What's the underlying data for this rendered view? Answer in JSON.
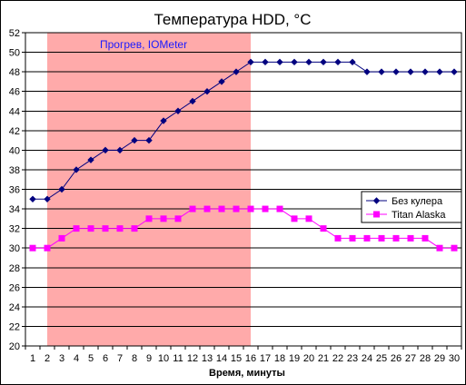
{
  "chart_data": {
    "type": "line",
    "title": "Температура HDD, °C",
    "xlabel": "Время, минуты",
    "ylabel": "",
    "x": [
      1,
      2,
      3,
      4,
      5,
      6,
      7,
      8,
      9,
      10,
      11,
      12,
      13,
      14,
      15,
      16,
      17,
      18,
      19,
      20,
      21,
      22,
      23,
      24,
      25,
      26,
      27,
      28,
      29,
      30
    ],
    "ylim": [
      20,
      52
    ],
    "yticks": [
      20,
      22,
      24,
      26,
      28,
      30,
      32,
      34,
      36,
      38,
      40,
      42,
      44,
      46,
      48,
      50,
      52
    ],
    "grid": "horizontal",
    "legend_position": "right",
    "series": [
      {
        "name": "Без кулера",
        "color": "#00007f",
        "marker": "diamond",
        "values": [
          35,
          35,
          36,
          38,
          39,
          40,
          40,
          41,
          41,
          43,
          44,
          45,
          46,
          47,
          48,
          49,
          49,
          49,
          49,
          49,
          49,
          49,
          49,
          48,
          48,
          48,
          48,
          48,
          48,
          48
        ]
      },
      {
        "name": "Titan Alaska",
        "color": "#ff00ff",
        "marker": "square",
        "values": [
          30,
          30,
          31,
          32,
          32,
          32,
          32,
          32,
          33,
          33,
          33,
          34,
          34,
          34,
          34,
          34,
          34,
          34,
          33,
          33,
          32,
          31,
          31,
          31,
          31,
          31,
          31,
          31,
          30,
          30
        ]
      }
    ],
    "shaded_region": {
      "x_from": 2,
      "x_to": 16,
      "color": "#ffaaaa"
    },
    "annotation": "Прогрев, IOMeter",
    "plot_background": "#ffffff",
    "gridline_color": "#000000"
  }
}
